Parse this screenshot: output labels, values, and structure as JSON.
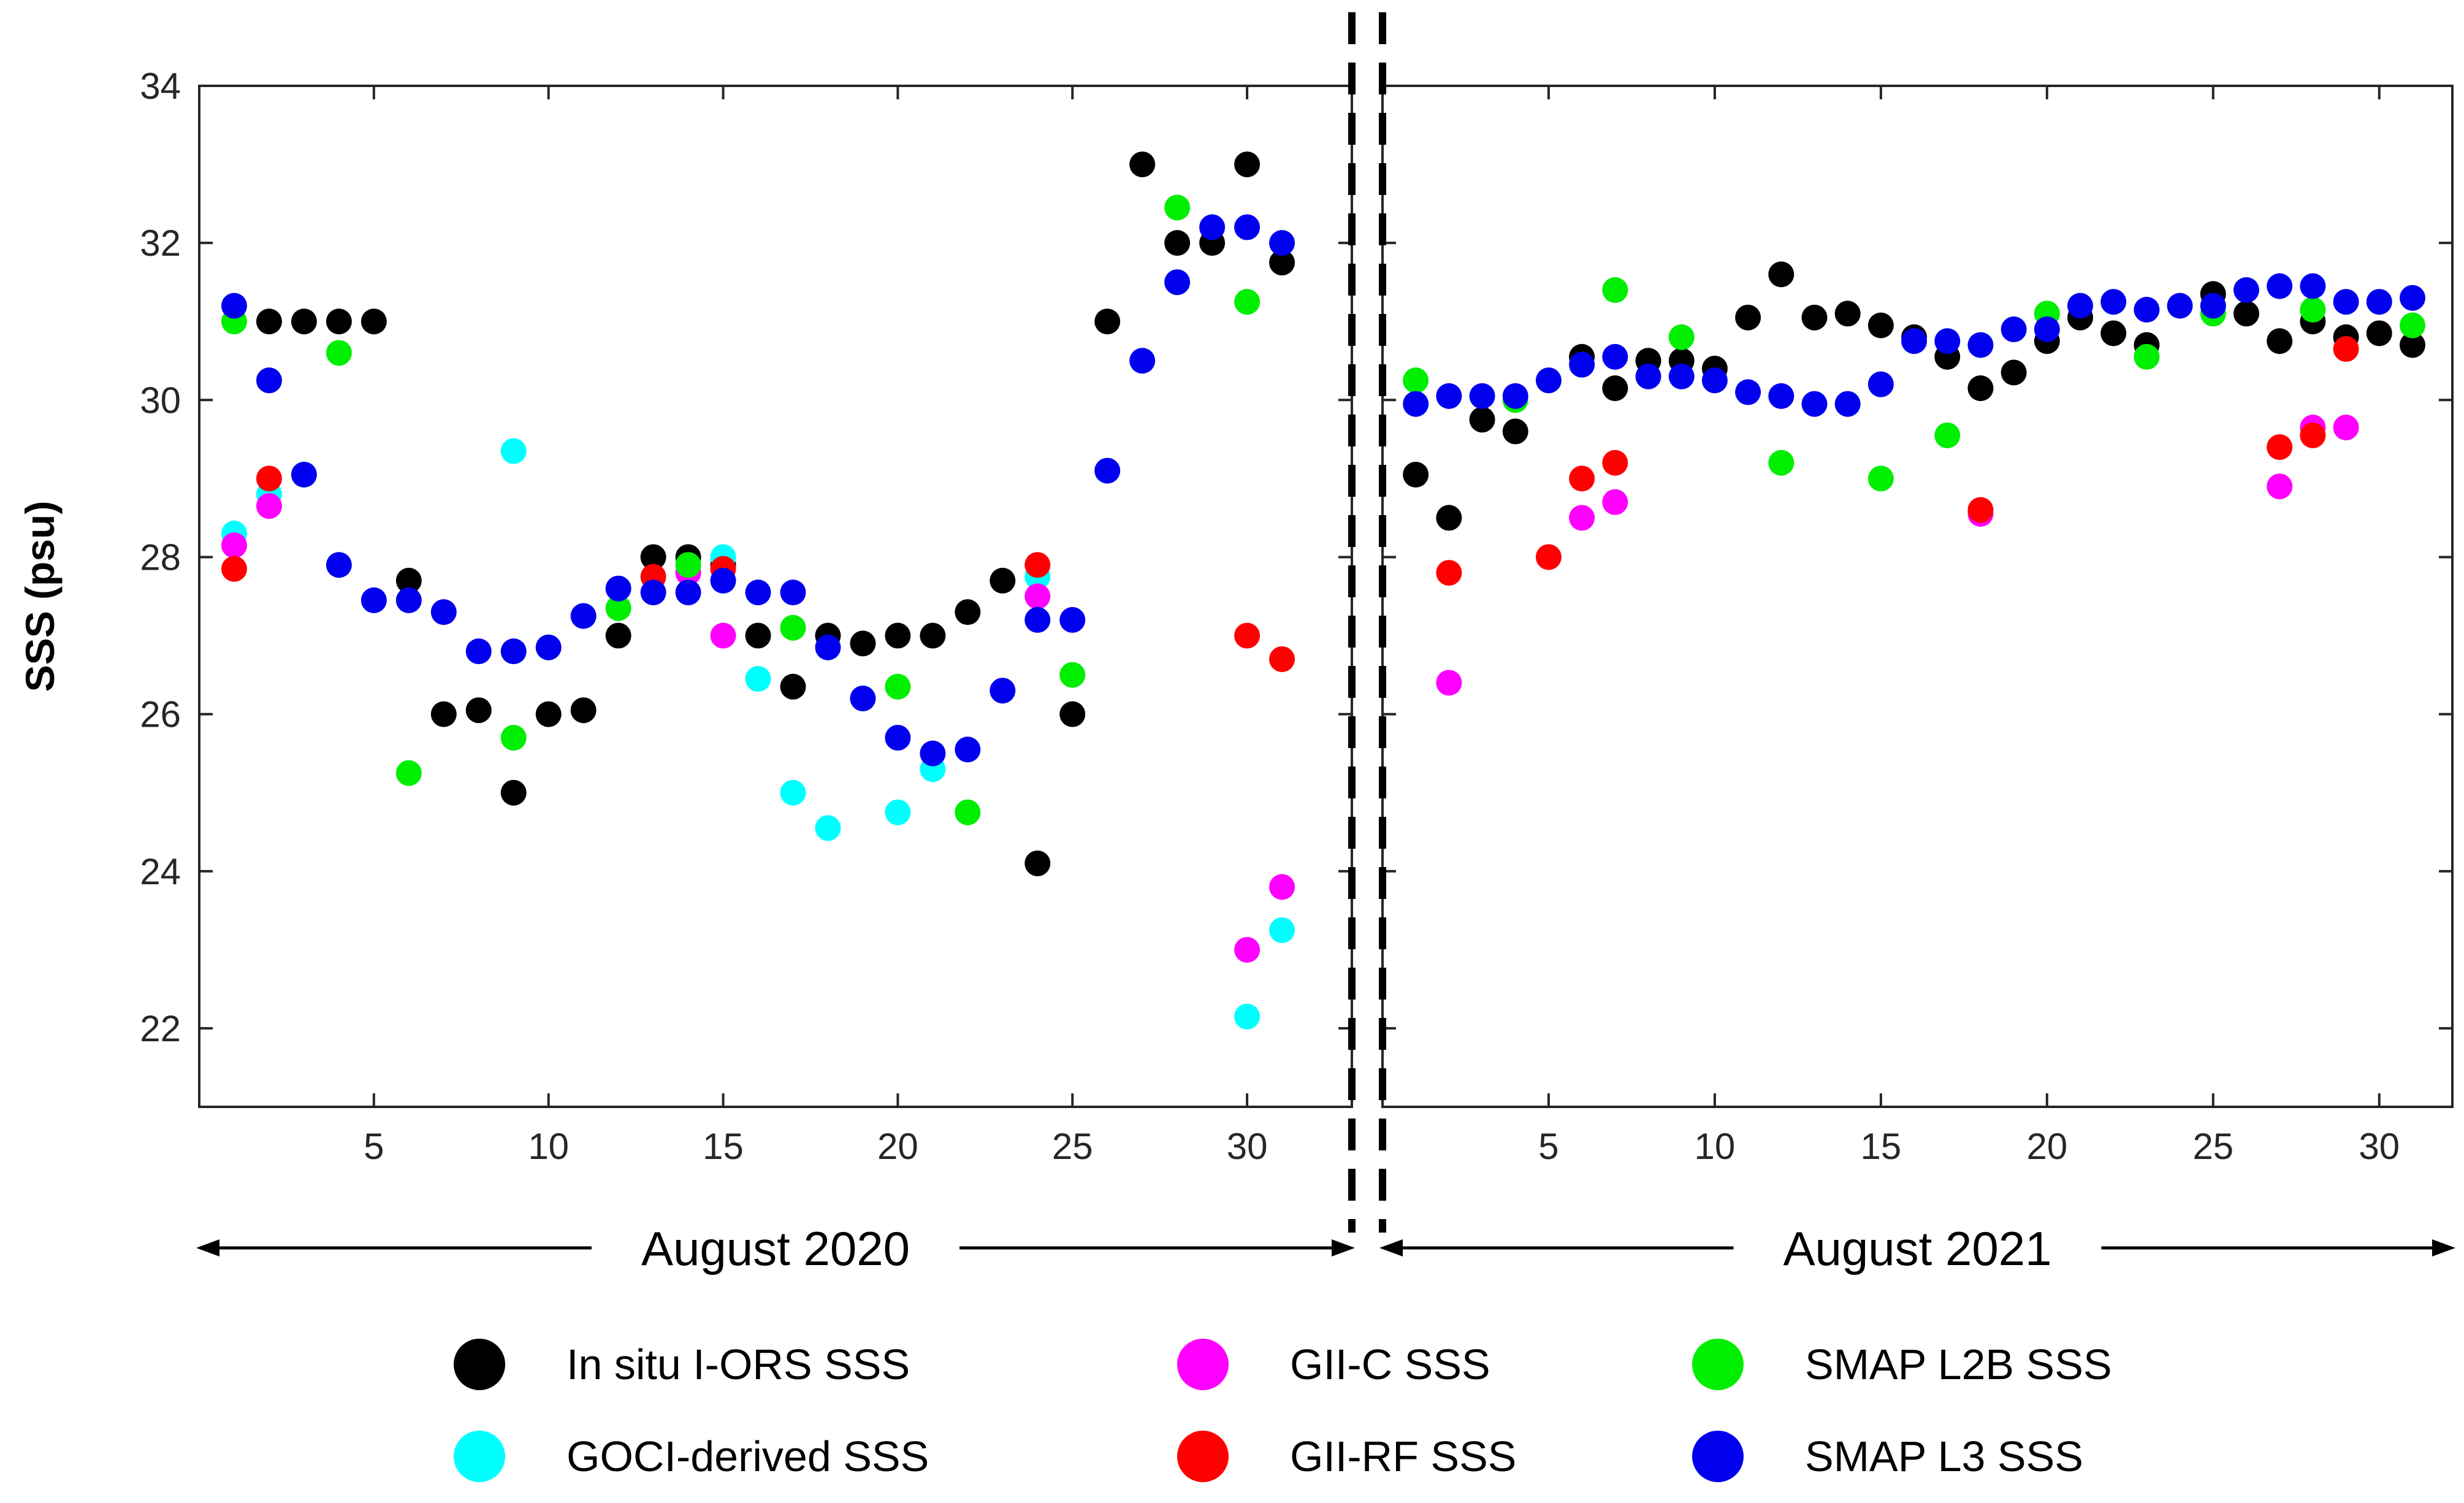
{
  "chart_data": {
    "type": "scatter",
    "ylabel": "SSS (psu)",
    "ylim": [
      21,
      34
    ],
    "yticks": [
      22,
      24,
      26,
      28,
      30,
      32,
      34
    ],
    "panels": [
      {
        "name": "August 2020",
        "xlim": [
          0,
          33
        ],
        "xticks": [
          5,
          10,
          15,
          20,
          25,
          30
        ],
        "series": [
          {
            "name": "In situ I-ORS SSS",
            "color": "#000000",
            "points": [
              [
                2,
                31
              ],
              [
                3,
                31
              ],
              [
                4,
                31
              ],
              [
                5,
                31
              ],
              [
                6,
                27.7
              ],
              [
                7,
                26
              ],
              [
                8,
                26.05
              ],
              [
                9,
                25
              ],
              [
                10,
                26
              ],
              [
                11,
                26.05
              ],
              [
                12,
                27
              ],
              [
                13,
                28
              ],
              [
                14,
                28
              ],
              [
                15,
                27.9
              ],
              [
                16,
                27
              ],
              [
                17,
                26.35
              ],
              [
                18,
                27
              ],
              [
                19,
                26.9
              ],
              [
                20,
                27
              ],
              [
                21,
                27
              ],
              [
                22,
                27.3
              ],
              [
                23,
                27.7
              ],
              [
                24,
                24.1
              ],
              [
                25,
                26
              ],
              [
                26,
                31
              ],
              [
                27,
                33
              ],
              [
                28,
                32
              ],
              [
                29,
                32
              ],
              [
                30,
                33
              ],
              [
                31,
                31.75
              ]
            ]
          },
          {
            "name": "GOCI-derived SSS",
            "color": "#00FFFF",
            "points": [
              [
                1,
                28.3
              ],
              [
                2,
                28.8
              ],
              [
                9,
                29.35
              ],
              [
                15,
                28
              ],
              [
                16,
                26.45
              ],
              [
                17,
                25
              ],
              [
                18,
                24.55
              ],
              [
                20,
                24.75
              ],
              [
                21,
                25.3
              ],
              [
                24,
                27.75
              ],
              [
                30,
                22.15
              ],
              [
                31,
                23.25
              ]
            ]
          },
          {
            "name": "GII-C SSS",
            "color": "#FF00FF",
            "points": [
              [
                1,
                28.15
              ],
              [
                2,
                28.65
              ],
              [
                14,
                27.8
              ],
              [
                15,
                27
              ],
              [
                24,
                27.5
              ],
              [
                30,
                23
              ],
              [
                31,
                23.8
              ]
            ]
          },
          {
            "name": "GII-RF SSS",
            "color": "#FF0000",
            "points": [
              [
                1,
                27.85
              ],
              [
                2,
                29
              ],
              [
                13,
                27.75
              ],
              [
                15,
                27.85
              ],
              [
                24,
                27.9
              ],
              [
                30,
                27
              ],
              [
                31,
                26.7
              ]
            ]
          },
          {
            "name": "SMAP L2B SSS",
            "color": "#00EE00",
            "points": [
              [
                1,
                31
              ],
              [
                4,
                30.6
              ],
              [
                6,
                25.25
              ],
              [
                9,
                25.7
              ],
              [
                12,
                27.35
              ],
              [
                14,
                27.9
              ],
              [
                17,
                27.1
              ],
              [
                20,
                26.35
              ],
              [
                22,
                24.75
              ],
              [
                25,
                26.5
              ],
              [
                28,
                32.45
              ],
              [
                30,
                31.25
              ]
            ]
          },
          {
            "name": "SMAP L3 SSS",
            "color": "#0000EE",
            "points": [
              [
                1,
                31.2
              ],
              [
                2,
                30.25
              ],
              [
                3,
                29.05
              ],
              [
                4,
                27.9
              ],
              [
                5,
                27.45
              ],
              [
                6,
                27.45
              ],
              [
                7,
                27.3
              ],
              [
                8,
                26.8
              ],
              [
                9,
                26.8
              ],
              [
                10,
                26.85
              ],
              [
                11,
                27.25
              ],
              [
                12,
                27.6
              ],
              [
                13,
                27.55
              ],
              [
                14,
                27.55
              ],
              [
                15,
                27.7
              ],
              [
                16,
                27.55
              ],
              [
                17,
                27.55
              ],
              [
                18,
                26.85
              ],
              [
                19,
                26.2
              ],
              [
                20,
                25.7
              ],
              [
                21,
                25.5
              ],
              [
                22,
                25.55
              ],
              [
                23,
                26.3
              ],
              [
                24,
                27.2
              ],
              [
                25,
                27.2
              ],
              [
                26,
                29.1
              ],
              [
                27,
                30.5
              ],
              [
                28,
                31.5
              ],
              [
                29,
                32.2
              ],
              [
                30,
                32.2
              ],
              [
                31,
                32
              ]
            ]
          }
        ]
      },
      {
        "name": "August 2021",
        "xlim": [
          0,
          32.2
        ],
        "xticks": [
          5,
          10,
          15,
          20,
          25,
          30
        ],
        "series": [
          {
            "name": "In situ I-ORS SSS",
            "color": "#000000",
            "points": [
              [
                1,
                29.05
              ],
              [
                2,
                28.5
              ],
              [
                3,
                29.75
              ],
              [
                4,
                29.6
              ],
              [
                6,
                30.55
              ],
              [
                7,
                30.15
              ],
              [
                8,
                30.5
              ],
              [
                9,
                30.5
              ],
              [
                10,
                30.4
              ],
              [
                11,
                31.05
              ],
              [
                12,
                31.6
              ],
              [
                13,
                31.05
              ],
              [
                14,
                31.1
              ],
              [
                15,
                30.95
              ],
              [
                16,
                30.8
              ],
              [
                17,
                30.55
              ],
              [
                18,
                30.15
              ],
              [
                19,
                30.35
              ],
              [
                20,
                30.75
              ],
              [
                21,
                31.05
              ],
              [
                22,
                30.85
              ],
              [
                23,
                30.7
              ],
              [
                25,
                31.35
              ],
              [
                26,
                31.1
              ],
              [
                27,
                30.75
              ],
              [
                28,
                31
              ],
              [
                29,
                30.8
              ],
              [
                30,
                30.85
              ],
              [
                31,
                30.7
              ]
            ]
          },
          {
            "name": "GOCI-derived SSS",
            "color": "#00FFFF",
            "points": []
          },
          {
            "name": "GII-C SSS",
            "color": "#FF00FF",
            "points": [
              [
                2,
                26.4
              ],
              [
                6,
                28.5
              ],
              [
                7,
                28.7
              ],
              [
                18,
                28.55
              ],
              [
                27,
                28.9
              ],
              [
                28,
                29.65
              ],
              [
                29,
                29.65
              ]
            ]
          },
          {
            "name": "GII-RF SSS",
            "color": "#FF0000",
            "points": [
              [
                2,
                27.8
              ],
              [
                5,
                28
              ],
              [
                6,
                29
              ],
              [
                7,
                29.2
              ],
              [
                18,
                28.6
              ],
              [
                27,
                29.4
              ],
              [
                28,
                29.55
              ],
              [
                29,
                30.65
              ]
            ]
          },
          {
            "name": "SMAP L2B SSS",
            "color": "#00EE00",
            "points": [
              [
                1,
                30.25
              ],
              [
                4,
                30
              ],
              [
                7,
                31.4
              ],
              [
                9,
                30.8
              ],
              [
                12,
                29.2
              ],
              [
                15,
                29
              ],
              [
                17,
                29.55
              ],
              [
                20,
                31.1
              ],
              [
                23,
                30.55
              ],
              [
                25,
                31.1
              ],
              [
                28,
                31.15
              ],
              [
                31,
                30.95
              ]
            ]
          },
          {
            "name": "SMAP L3 SSS",
            "color": "#0000EE",
            "points": [
              [
                1,
                29.95
              ],
              [
                2,
                30.05
              ],
              [
                3,
                30.05
              ],
              [
                4,
                30.05
              ],
              [
                5,
                30.25
              ],
              [
                6,
                30.45
              ],
              [
                7,
                30.55
              ],
              [
                8,
                30.3
              ],
              [
                9,
                30.3
              ],
              [
                10,
                30.25
              ],
              [
                11,
                30.1
              ],
              [
                12,
                30.05
              ],
              [
                13,
                29.95
              ],
              [
                14,
                29.95
              ],
              [
                15,
                30.2
              ],
              [
                16,
                30.75
              ],
              [
                17,
                30.75
              ],
              [
                18,
                30.7
              ],
              [
                19,
                30.9
              ],
              [
                20,
                30.9
              ],
              [
                21,
                31.2
              ],
              [
                22,
                31.25
              ],
              [
                23,
                31.15
              ],
              [
                24,
                31.2
              ],
              [
                25,
                31.2
              ],
              [
                26,
                31.4
              ],
              [
                27,
                31.45
              ],
              [
                28,
                31.45
              ],
              [
                29,
                31.25
              ],
              [
                30,
                31.25
              ],
              [
                31,
                31.3
              ]
            ]
          }
        ]
      }
    ],
    "legend": [
      {
        "name": "In situ I-ORS SSS",
        "color": "#000000"
      },
      {
        "name": "GII-C SSS",
        "color": "#FF00FF"
      },
      {
        "name": "SMAP L2B SSS",
        "color": "#00EE00"
      },
      {
        "name": "GOCI-derived SSS",
        "color": "#00FFFF"
      },
      {
        "name": "GII-RF SSS",
        "color": "#FF0000"
      },
      {
        "name": "SMAP L3 SSS",
        "color": "#0000EE"
      }
    ]
  }
}
